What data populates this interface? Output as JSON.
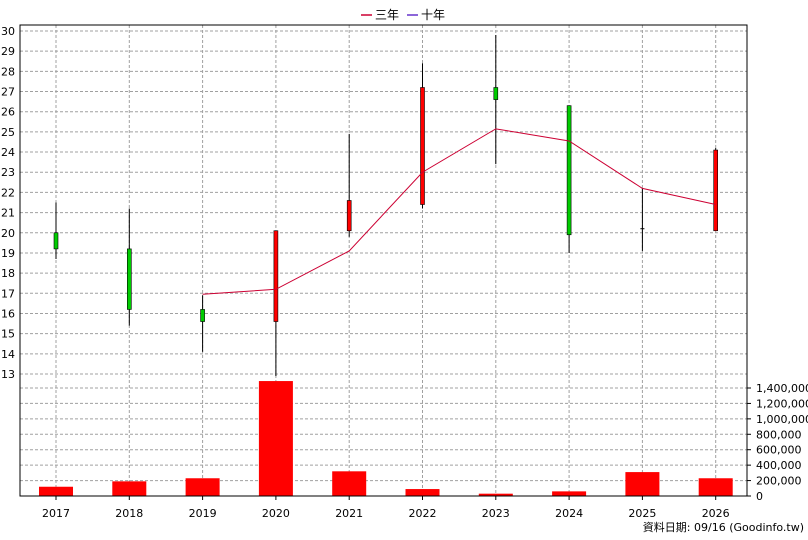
{
  "legend": [
    {
      "label": "三年",
      "color": "#cc0033"
    },
    {
      "label": "十年",
      "color": "#6633cc"
    }
  ],
  "footer": "資料日期: 09/16  (Goodinfo.tw)",
  "colors": {
    "up": "#ff0000",
    "down": "#00cc00",
    "wick": "#000000",
    "volume": "#ff0000",
    "line3": "#cc0033"
  },
  "chart_data": {
    "type": "candlestick+line+bar",
    "categories": [
      "2017",
      "2018",
      "2019",
      "2020",
      "2021",
      "2022",
      "2023",
      "2024",
      "2025",
      "2026"
    ],
    "price_axis": {
      "min": 13,
      "max": 30,
      "ticks": [
        13,
        14,
        15,
        16,
        17,
        18,
        19,
        20,
        21,
        22,
        23,
        24,
        25,
        26,
        27,
        28,
        29,
        30
      ]
    },
    "volume_axis": {
      "min": 0,
      "max": 1400000,
      "ticks": [
        0,
        200000,
        400000,
        600000,
        800000,
        1000000,
        1200000,
        1400000
      ],
      "tick_labels": [
        "0",
        "200,000",
        "400,000",
        "600,000",
        "800,000",
        "1,000,000",
        "1,200,000",
        "1,400,000"
      ]
    },
    "candles": [
      {
        "open": 20.0,
        "close": 19.2,
        "high": 21.5,
        "low": 18.7
      },
      {
        "open": 19.2,
        "close": 16.2,
        "high": 21.2,
        "low": 15.4
      },
      {
        "open": 16.2,
        "close": 15.6,
        "high": 16.9,
        "low": 14.1
      },
      {
        "open": 15.6,
        "close": 20.1,
        "high": 20.1,
        "low": 12.9
      },
      {
        "open": 20.1,
        "close": 21.6,
        "high": 24.9,
        "low": 19.8
      },
      {
        "open": 21.4,
        "close": 27.2,
        "high": 28.4,
        "low": 21.2
      },
      {
        "open": 27.2,
        "close": 26.6,
        "high": 29.8,
        "low": 23.4
      },
      {
        "open": 26.3,
        "close": 19.9,
        "high": 26.3,
        "low": 19.0
      },
      {
        "open": 20.2,
        "close": 20.2,
        "high": 22.2,
        "low": 19.1
      },
      {
        "open": 20.1,
        "close": 24.1,
        "high": 24.2,
        "low": 20.1
      }
    ],
    "line_three_year": [
      null,
      null,
      16.95,
      17.2,
      19.1,
      23.0,
      25.15,
      24.55,
      22.2,
      21.4
    ],
    "volume": [
      120000,
      190000,
      230000,
      1490000,
      320000,
      90000,
      30000,
      60000,
      310000,
      230000
    ]
  }
}
